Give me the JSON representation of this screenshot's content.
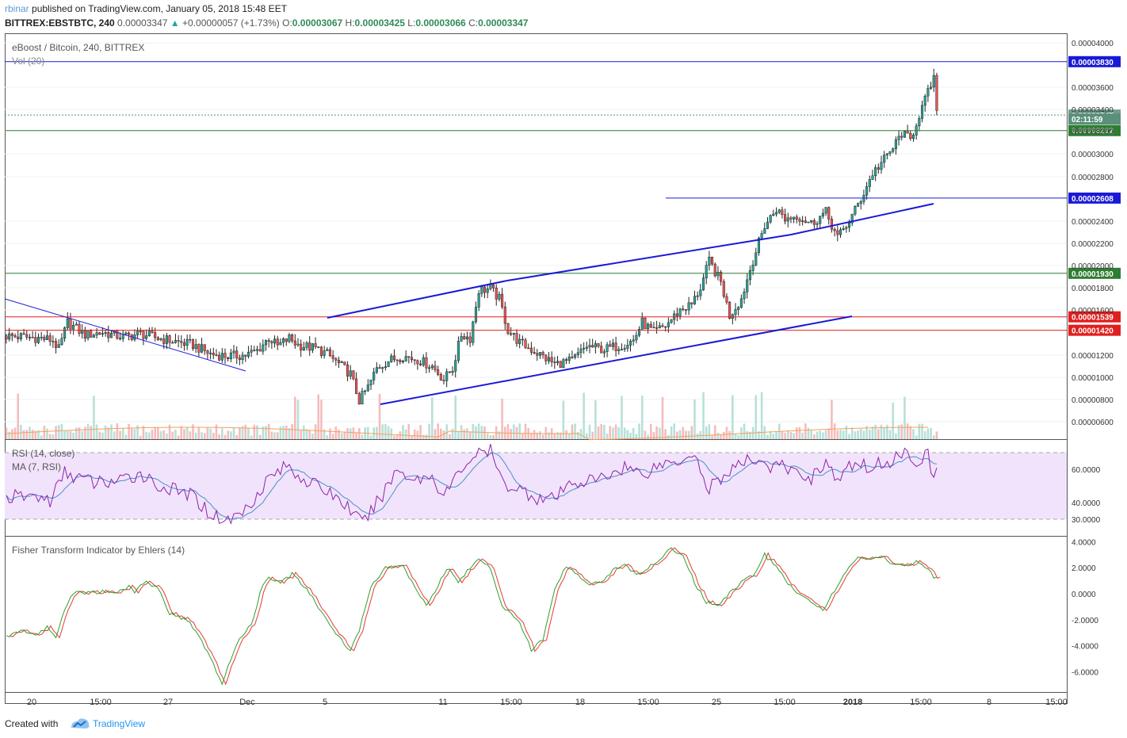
{
  "header": {
    "author": "rbinar",
    "published": "published on TradingView.com, January 05, 2018 15:48 EET",
    "symbol": "BITTREX:EBSTBTC, 240",
    "last": "0.00003347",
    "change": "+0.00000057 (+1.73%)",
    "o_label": "O:",
    "o": "0.00003067",
    "h_label": "H:",
    "h": "0.00003425",
    "l_label": "L:",
    "l": "0.00003066",
    "c_label": "C:",
    "c": "0.00003347"
  },
  "colors": {
    "up": "#26a69a",
    "down": "#ef5350",
    "rsi_fill": "#f1e3fb",
    "rsi_line": "#8e24aa",
    "rsi_ma": "#4a90c8",
    "fisher_green": "#2e9e2e",
    "fisher_red": "#e53935",
    "trend_blue": "#1a1ad6",
    "level_red": "#e01f1f",
    "level_green": "#2e7d32"
  },
  "footer": {
    "created_with": "Created with",
    "brand": "TradingView"
  },
  "chart_data": [
    {
      "type": "candlestick",
      "title": "eBoost / Bitcoin, 240, BITTREX",
      "volume_label": "Vol (20)",
      "ylim": [
        5.2e-06,
        4.1e-06
      ],
      "y_ticks": [
        "0.00004000",
        "0.00003600",
        "0.00003400",
        "0.00003200",
        "0.00003000",
        "0.00002800",
        "0.00002400",
        "0.00002200",
        "0.00002000",
        "0.00001800",
        "0.00001600",
        "0.00001200",
        "0.00001000",
        "0.00000800",
        "0.00000600"
      ],
      "x_ticks": [
        "20",
        "15:00",
        "27",
        "Dec",
        "5",
        "11",
        "15:00",
        "18",
        "15:00",
        "25",
        "15:00",
        "2018",
        "15:00",
        "8",
        "15:00"
      ],
      "levels": [
        {
          "label": "0.00003830",
          "value": 3.83e-05,
          "color": "blue"
        },
        {
          "label": "0.00003347",
          "value": 3.347e-05,
          "color": "last"
        },
        {
          "label": "02:11:59",
          "value": 3.31e-05,
          "color": "timer"
        },
        {
          "label": "0.00003202",
          "value": 3.202e-05,
          "color": "green"
        },
        {
          "label": "0.00002608",
          "value": 2.608e-05,
          "color": "blue"
        },
        {
          "label": "0.00001930",
          "value": 1.93e-05,
          "color": "green"
        },
        {
          "label": "0.00001539",
          "value": 1.539e-05,
          "color": "red"
        },
        {
          "label": "0.00001420",
          "value": 1.42e-05,
          "color": "red"
        }
      ],
      "anchors": [
        [
          0,
          1.37e-05
        ],
        [
          12,
          1.35e-05
        ],
        [
          16,
          1.33e-05
        ],
        [
          18,
          1.25e-05
        ],
        [
          21,
          1.49e-05
        ],
        [
          27,
          1.38e-05
        ],
        [
          33,
          1.4e-05
        ],
        [
          40,
          1.36e-05
        ],
        [
          46,
          1.39e-05
        ],
        [
          52,
          1.35e-05
        ],
        [
          58,
          1.32e-05
        ],
        [
          64,
          1.29e-05
        ],
        [
          70,
          1.21e-05
        ],
        [
          76,
          1.19e-05
        ],
        [
          82,
          1.2e-05
        ],
        [
          86,
          1.24e-05
        ],
        [
          90,
          1.35e-05
        ],
        [
          93,
          1.28e-05
        ],
        [
          97,
          1.35e-05
        ],
        [
          100,
          1.29e-05
        ],
        [
          106,
          1.26e-05
        ],
        [
          110,
          1.21e-05
        ],
        [
          114,
          1.12e-05
        ],
        [
          118,
          1.03e-05
        ],
        [
          121,
          7.9e-06
        ],
        [
          124,
          9.1e-06
        ],
        [
          127,
          1.08e-05
        ],
        [
          131,
          1.15e-05
        ],
        [
          136,
          1.19e-05
        ],
        [
          141,
          1.16e-05
        ],
        [
          146,
          1.1e-05
        ],
        [
          150,
          9.8e-06
        ],
        [
          153,
          1.08e-05
        ],
        [
          156,
          1.38e-05
        ],
        [
          159,
          1.35e-05
        ],
        [
          162,
          1.78e-05
        ],
        [
          166,
          1.79e-05
        ],
        [
          169,
          1.7e-05
        ],
        [
          172,
          1.42e-05
        ],
        [
          176,
          1.31e-05
        ],
        [
          182,
          1.22e-05
        ],
        [
          188,
          1.12e-05
        ],
        [
          194,
          1.15e-05
        ],
        [
          199,
          1.28e-05
        ],
        [
          205,
          1.25e-05
        ],
        [
          211,
          1.29e-05
        ],
        [
          215,
          1.33e-05
        ],
        [
          218,
          1.49e-05
        ],
        [
          222,
          1.4e-05
        ],
        [
          226,
          1.46e-05
        ],
        [
          231,
          1.6e-05
        ],
        [
          235,
          1.65e-05
        ],
        [
          238,
          1.8e-05
        ],
        [
          241,
          2.04e-05
        ],
        [
          245,
          1.85e-05
        ],
        [
          248,
          1.55e-05
        ],
        [
          252,
          1.7e-05
        ],
        [
          256,
          2.05e-05
        ],
        [
          260,
          2.36e-05
        ],
        [
          264,
          2.51e-05
        ],
        [
          267,
          2.42e-05
        ],
        [
          271,
          2.45e-05
        ],
        [
          276,
          2.38e-05
        ],
        [
          281,
          2.48e-05
        ],
        [
          285,
          2.25e-05
        ],
        [
          289,
          2.4e-05
        ],
        [
          293,
          2.6e-05
        ],
        [
          297,
          2.83e-05
        ],
        [
          301,
          2.95e-05
        ],
        [
          304,
          3.05e-05
        ],
        [
          307,
          3.18e-05
        ],
        [
          310,
          3.12e-05
        ],
        [
          313,
          3.35e-05
        ],
        [
          316,
          3.55e-05
        ],
        [
          318,
          3.68e-05
        ],
        [
          319,
          3.35e-05
        ]
      ],
      "n_candles": 320
    },
    {
      "type": "line",
      "title": "RSI (14, close)",
      "ma_label": "MA (7, RSI)",
      "ylim": [
        30,
        70
      ],
      "y_ticks": [
        "60.0000",
        "40.0000",
        "30.0000"
      ],
      "anchors": [
        [
          0,
          43
        ],
        [
          10,
          44
        ],
        [
          15,
          41
        ],
        [
          20,
          58
        ],
        [
          30,
          52
        ],
        [
          40,
          53
        ],
        [
          46,
          58
        ],
        [
          52,
          50
        ],
        [
          58,
          47
        ],
        [
          64,
          44
        ],
        [
          70,
          33
        ],
        [
          76,
          29
        ],
        [
          82,
          36
        ],
        [
          90,
          55
        ],
        [
          96,
          62
        ],
        [
          104,
          52
        ],
        [
          112,
          45
        ],
        [
          118,
          36
        ],
        [
          122,
          27
        ],
        [
          128,
          42
        ],
        [
          134,
          60
        ],
        [
          140,
          54
        ],
        [
          146,
          56
        ],
        [
          150,
          44
        ],
        [
          156,
          60
        ],
        [
          160,
          68
        ],
        [
          166,
          71
        ],
        [
          170,
          52
        ],
        [
          176,
          48
        ],
        [
          182,
          43
        ],
        [
          188,
          42
        ],
        [
          194,
          52
        ],
        [
          200,
          53
        ],
        [
          205,
          55
        ],
        [
          212,
          62
        ],
        [
          218,
          57
        ],
        [
          224,
          63
        ],
        [
          230,
          65
        ],
        [
          236,
          71
        ],
        [
          240,
          48
        ],
        [
          244,
          53
        ],
        [
          248,
          59
        ],
        [
          252,
          63
        ],
        [
          258,
          67
        ],
        [
          262,
          61
        ],
        [
          266,
          62
        ],
        [
          270,
          58
        ],
        [
          276,
          55
        ],
        [
          281,
          65
        ],
        [
          285,
          52
        ],
        [
          290,
          63
        ],
        [
          296,
          62
        ],
        [
          302,
          64
        ],
        [
          307,
          70
        ],
        [
          312,
          66
        ],
        [
          316,
          68
        ],
        [
          318,
          54
        ],
        [
          319,
          58
        ]
      ]
    },
    {
      "type": "line",
      "title": "Fisher Transform Indicator by Ehlers (14)",
      "ylim": [
        -7,
        4
      ],
      "y_ticks": [
        "4.0000",
        "2.0000",
        "0.0000",
        "-2.0000",
        "-4.0000",
        "-6.0000"
      ],
      "anchors": [
        [
          0,
          -3.3
        ],
        [
          6,
          -2.8
        ],
        [
          10,
          -3.2
        ],
        [
          14,
          -2.6
        ],
        [
          17,
          -3.3
        ],
        [
          20,
          -1.2
        ],
        [
          23,
          0.1
        ],
        [
          30,
          0.1
        ],
        [
          38,
          0.2
        ],
        [
          42,
          0.5
        ],
        [
          44,
          0.2
        ],
        [
          48,
          0.9
        ],
        [
          52,
          0.5
        ],
        [
          56,
          -1.5
        ],
        [
          62,
          -2.0
        ],
        [
          66,
          -3.2
        ],
        [
          70,
          -5.0
        ],
        [
          74,
          -6.9
        ],
        [
          77,
          -5.0
        ],
        [
          80,
          -3.5
        ],
        [
          84,
          -2.4
        ],
        [
          88,
          0.8
        ],
        [
          90,
          1.2
        ],
        [
          94,
          0.8
        ],
        [
          98,
          1.5
        ],
        [
          102,
          0.6
        ],
        [
          107,
          -1.0
        ],
        [
          112,
          -2.8
        ],
        [
          118,
          -4.4
        ],
        [
          121,
          -2.8
        ],
        [
          125,
          0.5
        ],
        [
          130,
          2.0
        ],
        [
          136,
          2.1
        ],
        [
          140,
          0.6
        ],
        [
          144,
          -1.0
        ],
        [
          148,
          0.6
        ],
        [
          151,
          2.0
        ],
        [
          155,
          1.0
        ],
        [
          158,
          1.7
        ],
        [
          162,
          2.8
        ],
        [
          166,
          2.0
        ],
        [
          170,
          -1.0
        ],
        [
          176,
          -2.2
        ],
        [
          180,
          -4.3
        ],
        [
          184,
          -3.5
        ],
        [
          188,
          0.2
        ],
        [
          192,
          2.2
        ],
        [
          196,
          1.5
        ],
        [
          200,
          0.6
        ],
        [
          204,
          1.0
        ],
        [
          208,
          1.8
        ],
        [
          212,
          2.2
        ],
        [
          216,
          1.5
        ],
        [
          220,
          2.0
        ],
        [
          224,
          2.5
        ],
        [
          228,
          3.5
        ],
        [
          232,
          3.0
        ],
        [
          236,
          0.8
        ],
        [
          240,
          -0.6
        ],
        [
          244,
          -0.9
        ],
        [
          248,
          0.0
        ],
        [
          252,
          0.9
        ],
        [
          256,
          1.4
        ],
        [
          260,
          3.0
        ],
        [
          264,
          2.0
        ],
        [
          268,
          0.8
        ],
        [
          272,
          0.0
        ],
        [
          276,
          -0.6
        ],
        [
          280,
          -1.2
        ],
        [
          284,
          0.2
        ],
        [
          288,
          1.8
        ],
        [
          292,
          2.8
        ],
        [
          296,
          2.6
        ],
        [
          300,
          2.9
        ],
        [
          304,
          2.2
        ],
        [
          308,
          2.2
        ],
        [
          312,
          2.4
        ],
        [
          316,
          1.8
        ],
        [
          318,
          1.3
        ]
      ]
    }
  ]
}
